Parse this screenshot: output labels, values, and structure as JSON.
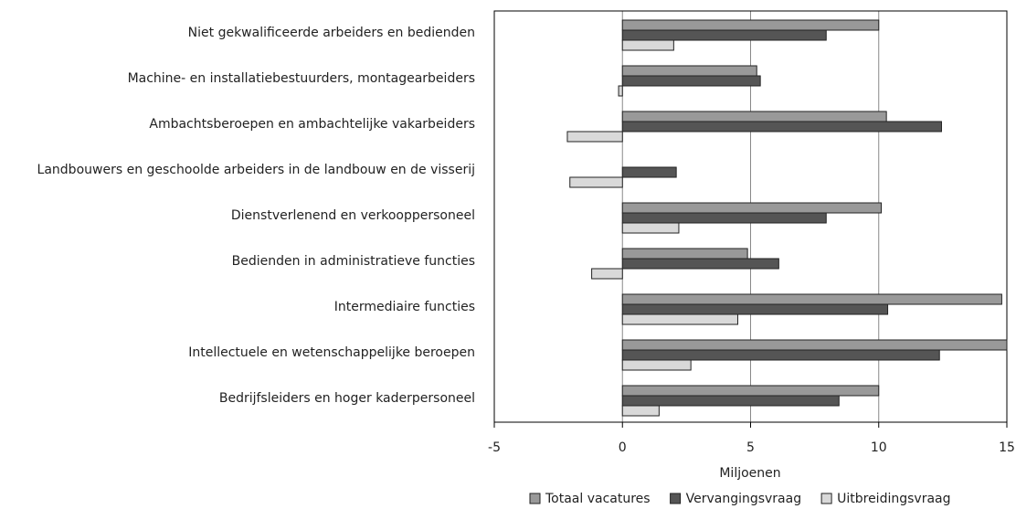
{
  "chart_data": {
    "type": "bar",
    "orientation": "horizontal",
    "x_label": "Miljoenen",
    "categories": [
      "Niet gekwalificeerde arbeiders en bedienden",
      "Machine- en installatiebestuurders, montagearbeiders",
      "Ambachtsberoepen en ambachtelijke vakarbeiders",
      "Landbouwers en geschoolde arbeiders in de landbouw en de visserij",
      "Dienstverlenend en verkooppersoneel",
      "Bedienden in administratieve functies",
      "Intermediaire functies",
      "Intellectuele en wetenschappelijke beroepen",
      "Bedrijfsleiders en hoger kaderpersoneel"
    ],
    "series": [
      {
        "name": "Totaal vacatures",
        "color": "#999999",
        "values": [
          10.0,
          5.24,
          10.3,
          0,
          10.1,
          4.88,
          14.8,
          15,
          10.0
        ]
      },
      {
        "name": "Vervangingsvraag",
        "color": "#555555",
        "values": [
          7.95,
          5.38,
          12.45,
          2.1,
          7.95,
          6.1,
          10.35,
          12.37,
          8.45
        ]
      },
      {
        "name": "Uitbreidingsvraag",
        "color": "#d9d9d9",
        "values": [
          2.0,
          -0.15,
          -2.15,
          -2.05,
          2.2,
          -1.2,
          4.5,
          2.67,
          1.43
        ]
      }
    ],
    "xlim": [
      -5,
      15
    ],
    "xticks": [
      -5,
      0,
      5,
      10,
      15
    ],
    "grid": true,
    "legend": "bottom"
  }
}
